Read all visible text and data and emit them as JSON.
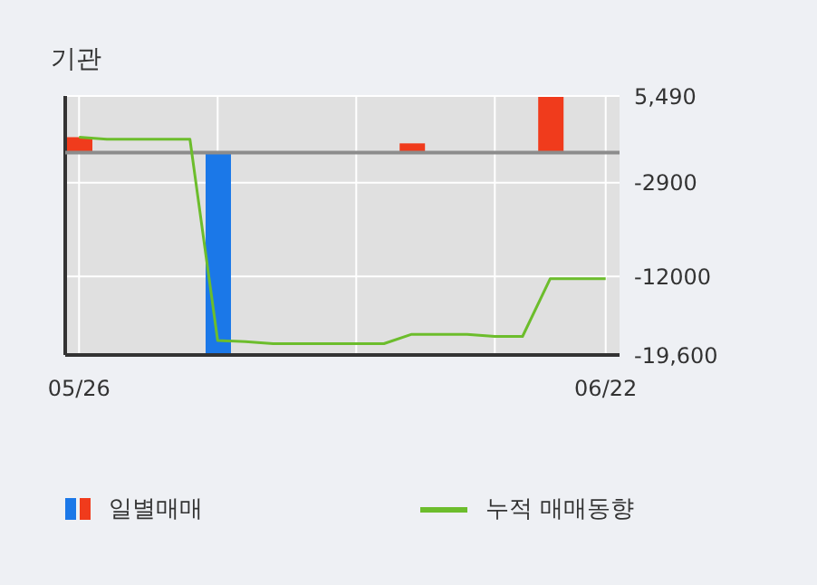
{
  "chart_data": {
    "type": "bar",
    "title": "기관",
    "categories": [
      "05/26",
      null,
      null,
      null,
      null,
      null,
      null,
      null,
      null,
      null,
      null,
      null,
      null,
      null,
      null,
      null,
      null,
      null,
      null,
      "06/22"
    ],
    "series": [
      {
        "name": "일별매매",
        "colors": [
          "#f03b1c",
          null,
          null,
          null,
          null,
          "#1b78e8",
          null,
          null,
          null,
          null,
          null,
          null,
          "#f03b1c",
          null,
          null,
          null,
          null,
          "#f03b1c",
          null,
          null
        ],
        "values": [
          1500,
          0,
          0,
          0,
          0,
          -19500,
          0,
          0,
          0,
          0,
          0,
          0,
          900,
          0,
          0,
          0,
          0,
          5400,
          0,
          0
        ]
      },
      {
        "name": "누적 매매동향",
        "type": "line",
        "color": "#6cbd2c",
        "values": [
          1500,
          1300,
          1300,
          1300,
          1300,
          -18200,
          -18300,
          -18500,
          -18500,
          -18500,
          -18500,
          -18500,
          -17600,
          -17600,
          -17600,
          -17800,
          -17800,
          -12200,
          -12200,
          -12200
        ]
      }
    ],
    "ylim": [
      -19600,
      5490
    ],
    "yticks": [
      {
        "value": 5490,
        "label": "5,490"
      },
      -2900,
      {
        "value": -12000,
        "label": "-12000"
      },
      {
        "value": -19600,
        "label": "-19,600"
      }
    ],
    "ref_lines": [
      {
        "axis": "y",
        "value": 0,
        "color": "#8c8c8c"
      }
    ],
    "grid": true,
    "legend": "bottom",
    "marker": "none"
  }
}
